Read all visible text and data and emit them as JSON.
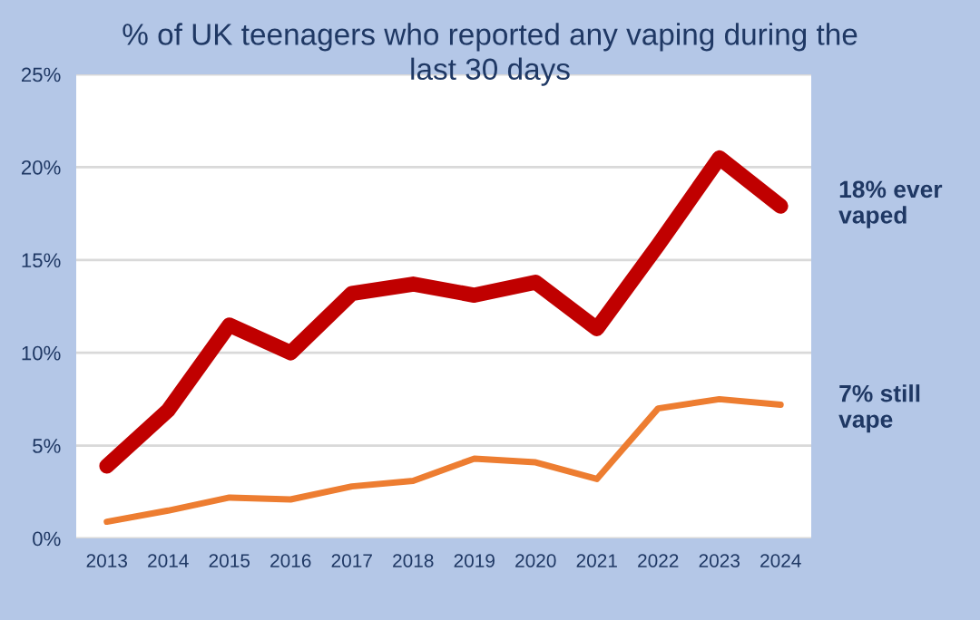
{
  "chart_data": {
    "type": "line",
    "title": "% of UK teenagers who reported any vaping during the last 30 days",
    "categories": [
      "2013",
      "2014",
      "2015",
      "2016",
      "2017",
      "2018",
      "2019",
      "2020",
      "2021",
      "2022",
      "2023",
      "2024"
    ],
    "series": [
      {
        "color": "#c00000",
        "values": [
          3.9,
          6.9,
          11.5,
          10.0,
          13.2,
          13.7,
          13.1,
          13.8,
          11.3,
          15.8,
          20.5,
          17.9
        ]
      },
      {
        "color": "#ed7d31",
        "values": [
          0.9,
          1.5,
          2.2,
          2.1,
          2.8,
          3.1,
          4.3,
          4.1,
          3.2,
          7.0,
          7.5,
          7.2
        ]
      }
    ],
    "ylim": [
      0,
      25
    ],
    "yticks": [
      {
        "value": 0,
        "label": "0%"
      },
      {
        "value": 5,
        "label": "5%"
      },
      {
        "value": 10,
        "label": "10%"
      },
      {
        "value": 15,
        "label": "15%"
      },
      {
        "value": 20,
        "label": "20%"
      },
      {
        "value": 25,
        "label": "25%"
      }
    ],
    "grid": "y",
    "legend": false,
    "marker": "none",
    "line_style": "solid",
    "annotations": [
      {
        "text": "18% ever vaped",
        "x": "2024",
        "y": 18
      },
      {
        "text": "7% still vape",
        "x": "2024",
        "y": 7
      }
    ]
  }
}
